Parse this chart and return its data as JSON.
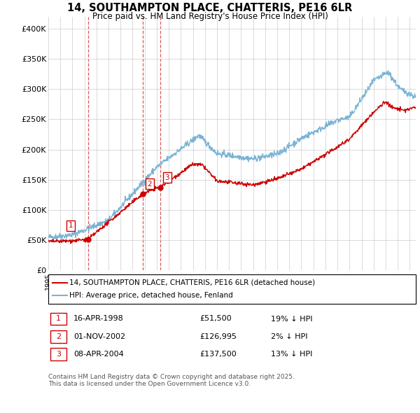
{
  "title": "14, SOUTHAMPTON PLACE, CHATTERIS, PE16 6LR",
  "subtitle": "Price paid vs. HM Land Registry's House Price Index (HPI)",
  "ylim": [
    0,
    420000
  ],
  "yticks": [
    0,
    50000,
    100000,
    150000,
    200000,
    250000,
    300000,
    350000,
    400000
  ],
  "ytick_labels": [
    "£0",
    "£50K",
    "£100K",
    "£150K",
    "£200K",
    "£250K",
    "£300K",
    "£350K",
    "£400K"
  ],
  "hpi_color": "#7ab3d4",
  "price_color": "#cc0000",
  "vline_color": "#cc0000",
  "background_color": "#ffffff",
  "grid_color": "#cccccc",
  "sale_dates": [
    1998.29,
    2002.83,
    2004.27
  ],
  "sale_prices": [
    51500,
    126995,
    137500
  ],
  "sale_labels": [
    "1",
    "2",
    "3"
  ],
  "legend_entries": [
    "14, SOUTHAMPTON PLACE, CHATTERIS, PE16 6LR (detached house)",
    "HPI: Average price, detached house, Fenland"
  ],
  "table_rows": [
    [
      "1",
      "16-APR-1998",
      "£51,500",
      "19% ↓ HPI"
    ],
    [
      "2",
      "01-NOV-2002",
      "£126,995",
      "2% ↓ HPI"
    ],
    [
      "3",
      "08-APR-2004",
      "£137,500",
      "13% ↓ HPI"
    ]
  ],
  "footnote": "Contains HM Land Registry data © Crown copyright and database right 2025.\nThis data is licensed under the Open Government Licence v3.0.",
  "xlim_start": 1995.0,
  "xlim_end": 2025.5
}
